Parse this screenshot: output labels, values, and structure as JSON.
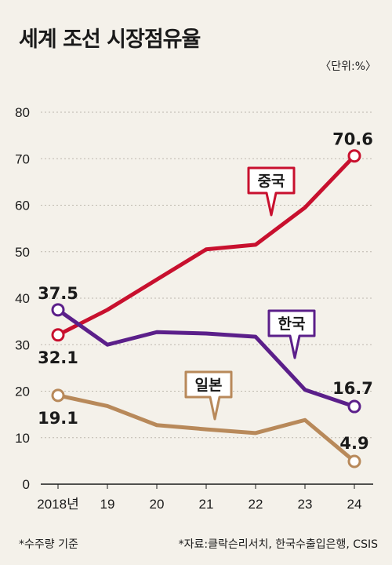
{
  "title": "세계 조선 시장점유율",
  "unit_label": "〈단위:%〉",
  "footnotes": {
    "left": "*수주량 기준",
    "right": "*자료:클락슨리서치, 한국수출입은행, CSIS"
  },
  "colors": {
    "china": "#c8102e",
    "korea": "#5b1f8a",
    "japan": "#b8895a",
    "grid": "#bdb8ae",
    "background": "#f4f1ea"
  },
  "chart_data": {
    "type": "line",
    "x": [
      "2018년",
      "19",
      "20",
      "21",
      "22",
      "23",
      "24"
    ],
    "ylim": [
      0,
      80
    ],
    "yticks": [
      "0",
      "10",
      "20",
      "30",
      "40",
      "50",
      "60",
      "70",
      "80"
    ],
    "grid": true,
    "series": [
      {
        "name": "중국",
        "color": "#c8102e",
        "values": [
          32.1,
          37.5,
          44.0,
          50.5,
          51.5,
          59.5,
          70.6
        ],
        "end_labels": {
          "first": "32.1",
          "last": "70.6"
        }
      },
      {
        "name": "한국",
        "color": "#5b1f8a",
        "values": [
          37.5,
          30.0,
          32.7,
          32.4,
          31.7,
          20.3,
          16.7
        ],
        "end_labels": {
          "first": "37.5",
          "last": "16.7"
        }
      },
      {
        "name": "일본",
        "color": "#b8895a",
        "values": [
          19.1,
          16.8,
          12.7,
          11.8,
          11.0,
          13.8,
          4.9
        ],
        "end_labels": {
          "first": "19.1",
          "last": "4.9"
        }
      }
    ]
  }
}
